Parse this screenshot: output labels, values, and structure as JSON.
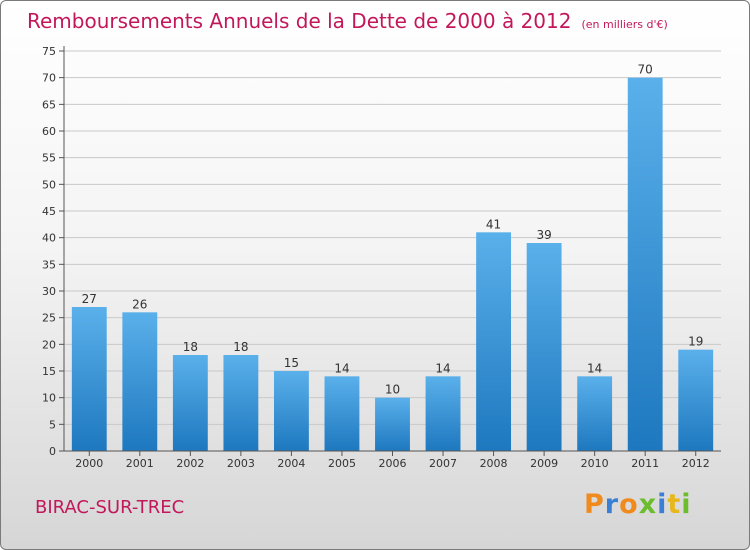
{
  "title": "Remboursements Annuels de la Dette de 2000 à 2012",
  "unit_note": "(en milliers d'€)",
  "commune": "BIRAC-SUR-TREC",
  "logo": {
    "text": "Proxiti",
    "letter_colors": [
      "#f08a1c",
      "#3a7fd5",
      "#f08a1c",
      "#6cbd2e",
      "#3a7fd5",
      "#e8b81a",
      "#6cbd2e"
    ]
  },
  "colors": {
    "bar_top": "#5ab0ea",
    "bar_bottom": "#1e78bf",
    "title": "#c2185b"
  },
  "chart_data": {
    "type": "bar",
    "categories": [
      "2000",
      "2001",
      "2002",
      "2003",
      "2004",
      "2005",
      "2006",
      "2007",
      "2008",
      "2009",
      "2010",
      "2011",
      "2012"
    ],
    "values": [
      27,
      26,
      18,
      18,
      15,
      14,
      10,
      14,
      41,
      39,
      14,
      70,
      19
    ],
    "ylim": [
      0,
      75
    ],
    "yticks": [
      0,
      5,
      10,
      15,
      20,
      25,
      30,
      35,
      40,
      45,
      50,
      55,
      60,
      65,
      70,
      75
    ],
    "grid": true,
    "data_labels": true
  }
}
